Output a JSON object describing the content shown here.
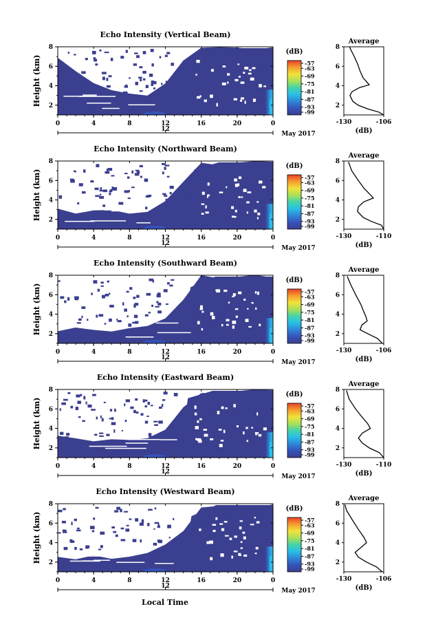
{
  "figure": {
    "date_label": "May 2017",
    "x_axis_title": "Local Time",
    "y_axis_title": "Height (km)",
    "colorbar_unit": "(dB)",
    "average_title": "Average",
    "average_unit": "(dB)"
  },
  "chart_data": [
    {
      "type": "heatmap",
      "title": "Echo Intensity (Vertical Beam)",
      "x_ticks": [
        "0",
        "4",
        "8",
        "12",
        "16",
        "20",
        "0"
      ],
      "x_range_hours": [
        0,
        24
      ],
      "x_secondary_label": "12",
      "y_ticks": [
        "2",
        "4",
        "6",
        "8"
      ],
      "y_range_km": [
        1.0,
        8.0
      ],
      "colorbar": {
        "ticks": [
          "-57",
          "-63",
          "-69",
          "-75",
          "-81",
          "-87",
          "-93",
          "-99"
        ],
        "range_db": [
          -99,
          -57
        ]
      },
      "average": {
        "xlabel": "(dB)",
        "x_ticks": [
          "-130",
          "-106"
        ],
        "x_range": [
          -130,
          -106
        ],
        "y_range_km": [
          1.0,
          8.0
        ],
        "profile": [
          [
            -106,
            1.0
          ],
          [
            -109,
            1.3
          ],
          [
            -115,
            1.6
          ],
          [
            -121,
            2.0
          ],
          [
            -125,
            2.4
          ],
          [
            -126,
            3.0
          ],
          [
            -125,
            3.4
          ],
          [
            -121,
            3.8
          ],
          [
            -115,
            4.1
          ],
          [
            -116,
            4.4
          ],
          [
            -118,
            4.8
          ],
          [
            -120,
            5.5
          ],
          [
            -122,
            6.2
          ],
          [
            -124,
            7.0
          ],
          [
            -126,
            7.8
          ],
          [
            -127,
            8.0
          ]
        ]
      },
      "echo_regions": {
        "top_km": [
          6.8,
          5.6,
          4.2,
          3.3,
          3.1,
          2.9,
          4.4,
          6.4,
          7.8,
          7.8,
          7.8,
          7.8,
          7.8
        ],
        "core_start_hours": 14.1
      }
    },
    {
      "type": "heatmap",
      "title": "Echo Intensity (Northward Beam)",
      "x_ticks": [
        "0",
        "4",
        "8",
        "12",
        "16",
        "20",
        "0"
      ],
      "x_range_hours": [
        0,
        24
      ],
      "x_secondary_label": "12",
      "y_ticks": [
        "2",
        "4",
        "6",
        "8"
      ],
      "y_range_km": [
        1.0,
        8.0
      ],
      "colorbar": {
        "ticks": [
          "-57",
          "-63",
          "-69",
          "-75",
          "-81",
          "-87",
          "-93",
          "-99"
        ],
        "range_db": [
          -99,
          -57
        ]
      },
      "average": {
        "xlabel": "(dB)",
        "x_ticks": [
          "-130",
          "-110"
        ],
        "x_range": [
          -130,
          -110
        ],
        "y_range_km": [
          1.0,
          8.0
        ],
        "profile": [
          [
            -109,
            1.0
          ],
          [
            -111,
            1.4
          ],
          [
            -116,
            1.8
          ],
          [
            -120,
            2.2
          ],
          [
            -123,
            2.8
          ],
          [
            -123,
            3.3
          ],
          [
            -120,
            3.8
          ],
          [
            -115,
            4.2
          ],
          [
            -117,
            4.6
          ],
          [
            -120,
            5.2
          ],
          [
            -123,
            6.0
          ],
          [
            -126,
            7.0
          ],
          [
            -128,
            7.9
          ]
        ]
      },
      "echo_regions": {
        "top_km": [
          3.2,
          2.8,
          3.0,
          2.9,
          2.6,
          2.8,
          3.9,
          5.8,
          7.8,
          7.8,
          7.8,
          7.8,
          7.8
        ],
        "core_start_hours": 14.9
      }
    },
    {
      "type": "heatmap",
      "title": "Echo Intensity (Southward Beam)",
      "x_ticks": [
        "0",
        "4",
        "8",
        "12",
        "16",
        "20",
        "0"
      ],
      "x_range_hours": [
        0,
        24
      ],
      "x_secondary_label": "12",
      "y_ticks": [
        "2",
        "4",
        "6",
        "8"
      ],
      "y_range_km": [
        1.0,
        8.0
      ],
      "colorbar": {
        "ticks": [
          "-57",
          "-63",
          "-69",
          "-75",
          "-81",
          "-87",
          "-93",
          "-99"
        ],
        "range_db": [
          -99,
          -57
        ]
      },
      "average": {
        "xlabel": "(dB)",
        "x_ticks": [
          "-130",
          "-106"
        ],
        "x_range": [
          -130,
          -106
        ],
        "y_range_km": [
          1.0,
          8.0
        ],
        "profile": [
          [
            -107,
            1.0
          ],
          [
            -110,
            1.5
          ],
          [
            -116,
            2.0
          ],
          [
            -120,
            2.4
          ],
          [
            -119,
            2.9
          ],
          [
            -116,
            3.3
          ],
          [
            -117,
            3.8
          ],
          [
            -118,
            4.3
          ],
          [
            -120,
            5.0
          ],
          [
            -123,
            6.0
          ],
          [
            -126,
            7.0
          ],
          [
            -128,
            7.9
          ]
        ]
      },
      "echo_regions": {
        "top_km": [
          2.3,
          2.6,
          2.5,
          2.4,
          2.6,
          2.8,
          3.8,
          5.4,
          7.8,
          7.8,
          7.8,
          7.8,
          7.8
        ],
        "core_start_hours": 14.5
      }
    },
    {
      "type": "heatmap",
      "title": "Echo Intensity (Eastward Beam)",
      "x_ticks": [
        "0",
        "4",
        "8",
        "12",
        "16",
        "20",
        "0"
      ],
      "x_range_hours": [
        0,
        24
      ],
      "x_secondary_label": "12",
      "y_ticks": [
        "2",
        "4",
        "6",
        "8"
      ],
      "y_range_km": [
        1.0,
        8.0
      ],
      "colorbar": {
        "ticks": [
          "-57",
          "-63",
          "-69",
          "-75",
          "-81",
          "-87",
          "-93",
          "-99"
        ],
        "range_db": [
          -99,
          -57
        ]
      },
      "average": {
        "xlabel": "(dB)",
        "x_ticks": [
          "-130",
          "-110"
        ],
        "x_range": [
          -130,
          -110
        ],
        "y_range_km": [
          1.0,
          8.0
        ],
        "profile": [
          [
            -109,
            1.0
          ],
          [
            -112,
            1.5
          ],
          [
            -117,
            2.0
          ],
          [
            -121,
            2.5
          ],
          [
            -123,
            3.0
          ],
          [
            -121,
            3.5
          ],
          [
            -117,
            4.0
          ],
          [
            -118,
            4.5
          ],
          [
            -121,
            5.2
          ],
          [
            -124,
            6.0
          ],
          [
            -127,
            7.0
          ],
          [
            -129,
            7.9
          ]
        ]
      },
      "echo_regions": {
        "top_km": [
          3.4,
          3.0,
          2.9,
          2.7,
          2.6,
          2.9,
          4.0,
          6.0,
          7.8,
          7.8,
          7.8,
          7.8,
          7.8
        ],
        "core_start_hours": 14.2
      }
    },
    {
      "type": "heatmap",
      "title": "Echo Intensity (Westward Beam)",
      "x_ticks": [
        "0",
        "4",
        "8",
        "12",
        "16",
        "20",
        "0"
      ],
      "x_range_hours": [
        0,
        24
      ],
      "x_secondary_label": "12",
      "y_ticks": [
        "2",
        "4",
        "6",
        "8"
      ],
      "y_range_km": [
        1.0,
        8.0
      ],
      "colorbar": {
        "ticks": [
          "-57",
          "-63",
          "-69",
          "-75",
          "-81",
          "-87",
          "-93",
          "-99"
        ],
        "range_db": [
          -99,
          -57
        ]
      },
      "average": {
        "xlabel": "(dB)",
        "x_ticks": [
          "-130",
          "-106"
        ],
        "x_range": [
          -130,
          -106
        ],
        "y_range_km": [
          1.0,
          8.0
        ],
        "profile": [
          [
            -107,
            1.0
          ],
          [
            -110,
            1.5
          ],
          [
            -116,
            2.0
          ],
          [
            -121,
            2.5
          ],
          [
            -123,
            3.0
          ],
          [
            -120,
            3.5
          ],
          [
            -116,
            4.0
          ],
          [
            -118,
            4.5
          ],
          [
            -121,
            5.3
          ],
          [
            -125,
            6.3
          ],
          [
            -128,
            7.3
          ],
          [
            -129,
            7.9
          ]
        ]
      },
      "echo_regions": {
        "top_km": [
          2.4,
          2.5,
          2.6,
          2.5,
          2.5,
          2.7,
          3.6,
          5.2,
          7.8,
          7.8,
          7.8,
          7.8,
          7.8
        ],
        "core_start_hours": 14.6
      }
    }
  ]
}
